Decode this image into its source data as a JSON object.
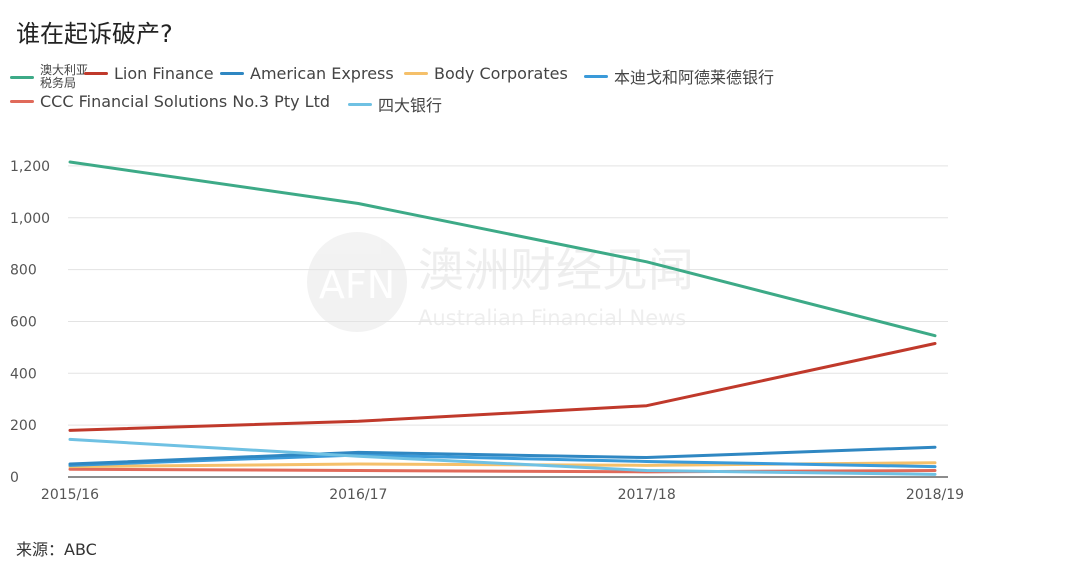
{
  "title": "谁在起诉破产?",
  "source": "来源：ABC",
  "watermark": {
    "logo_text": "AFN",
    "name_cn": "澳洲财经见闻",
    "name_en": "Australian Financial News"
  },
  "chart_data": {
    "type": "line",
    "title": "谁在起诉破产?",
    "categories": [
      "2015/16",
      "2016/17",
      "2017/18",
      "2018/19"
    ],
    "yticks": [
      "0",
      "200",
      "400",
      "600",
      "800",
      "1,000",
      "1,200"
    ],
    "ylim": [
      0,
      1300
    ],
    "grid": true,
    "legend_position": "top",
    "series": [
      {
        "name": "澳大利亚税务局",
        "color": "#3daa87",
        "values": [
          1215,
          1055,
          830,
          545
        ]
      },
      {
        "name": "Lion Finance",
        "color": "#c0392b",
        "values": [
          180,
          215,
          275,
          515
        ]
      },
      {
        "name": "American Express",
        "color": "#2f87c2",
        "values": [
          50,
          95,
          75,
          115
        ]
      },
      {
        "name": "Body Corporates",
        "color": "#f5c06a",
        "values": [
          40,
          50,
          45,
          55
        ]
      },
      {
        "name": "本迪戈和阿德莱德银行",
        "color": "#3a9ad9",
        "values": [
          45,
          85,
          60,
          40
        ]
      },
      {
        "name": "CCC Financial Solutions No.3 Pty Ltd",
        "color": "#e06a5a",
        "values": [
          30,
          25,
          20,
          25
        ]
      },
      {
        "name": "四大银行",
        "color": "#6fc1e3",
        "values": [
          145,
          80,
          25,
          10
        ]
      }
    ]
  }
}
